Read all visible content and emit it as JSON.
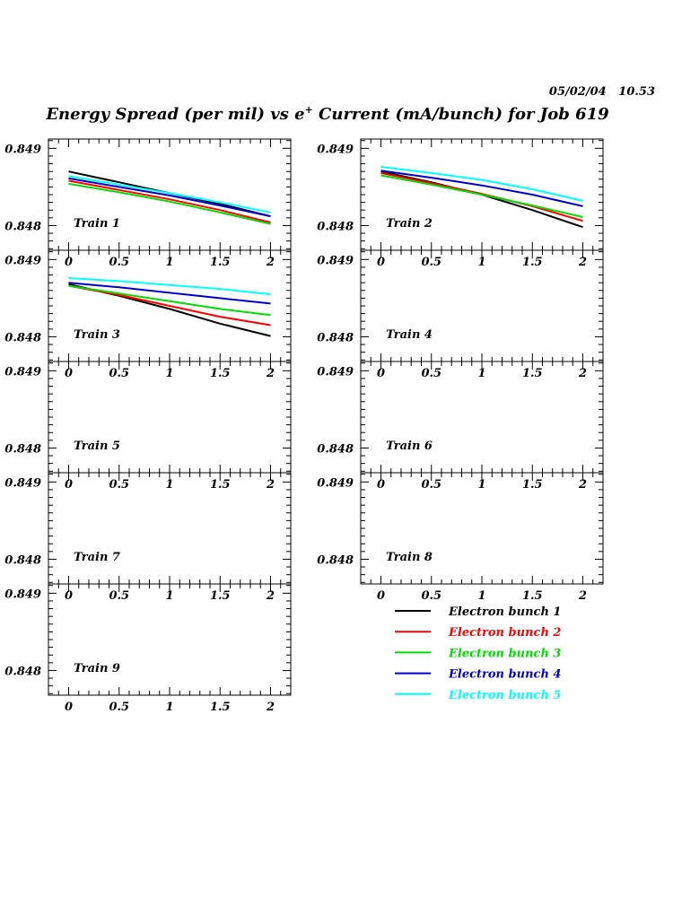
{
  "header": {
    "date": "05/02/04",
    "time": "10.53",
    "title_prefix": "Energy Spread (per mil) vs e",
    "title_sup": "+",
    "title_suffix": " Current (mA/bunch) for Job 619"
  },
  "chart_data": {
    "type": "line",
    "x_ticks": [
      "0",
      "0.5",
      "1",
      "1.5",
      "2"
    ],
    "y_ticks": [
      "0.848",
      "0.849"
    ],
    "xlim": [
      -0.2,
      2.2
    ],
    "ylim": [
      0.84768,
      0.84912
    ],
    "series_names": [
      "Electron bunch 1",
      "Electron bunch 2",
      "Electron bunch 3",
      "Electron bunch 4",
      "Electron bunch 5"
    ],
    "series_colors": [
      "#000000",
      "#ff0000",
      "#00dd00",
      "#0000cc",
      "#00ffff"
    ],
    "x": [
      0,
      0.5,
      1,
      1.5,
      2
    ],
    "panels": [
      {
        "label": "Train 1",
        "series": [
          {
            "values": [
              0.8487,
              0.84856,
              0.84842,
              0.84828,
              0.84812
            ]
          },
          {
            "values": [
              0.84858,
              0.84846,
              0.84834,
              0.8482,
              0.84804
            ]
          },
          {
            "values": [
              0.84854,
              0.84843,
              0.84831,
              0.84817,
              0.84802
            ]
          },
          {
            "values": [
              0.84861,
              0.8485,
              0.84839,
              0.84826,
              0.84812
            ]
          },
          {
            "values": [
              0.84864,
              0.84853,
              0.84842,
              0.8483,
              0.84817
            ]
          }
        ]
      },
      {
        "label": "Train 2",
        "series": [
          {
            "values": [
              0.8487,
              0.84856,
              0.8484,
              0.8482,
              0.84798
            ]
          },
          {
            "values": [
              0.84868,
              0.84855,
              0.84841,
              0.84825,
              0.84806
            ]
          },
          {
            "values": [
              0.84865,
              0.84853,
              0.8484,
              0.84826,
              0.84811
            ]
          },
          {
            "values": [
              0.84871,
              0.84862,
              0.84852,
              0.8484,
              0.84825
            ]
          },
          {
            "values": [
              0.84876,
              0.84868,
              0.84859,
              0.84847,
              0.84832
            ]
          }
        ]
      },
      {
        "label": "Train 3",
        "series": [
          {
            "values": [
              0.84868,
              0.84853,
              0.84836,
              0.84817,
              0.84801
            ]
          },
          {
            "values": [
              0.84866,
              0.84854,
              0.8484,
              0.84826,
              0.84815
            ]
          },
          {
            "values": [
              0.84866,
              0.84856,
              0.84846,
              0.84836,
              0.84828
            ]
          },
          {
            "values": [
              0.8487,
              0.84864,
              0.84857,
              0.8485,
              0.84843
            ]
          },
          {
            "values": [
              0.84876,
              0.84872,
              0.84867,
              0.84862,
              0.84855
            ]
          }
        ]
      },
      {
        "label": "Train 4",
        "series": []
      },
      {
        "label": "Train 5",
        "series": []
      },
      {
        "label": "Train 6",
        "series": []
      },
      {
        "label": "Train 7",
        "series": []
      },
      {
        "label": "Train 8",
        "series": []
      },
      {
        "label": "Train 9",
        "series": []
      }
    ]
  }
}
